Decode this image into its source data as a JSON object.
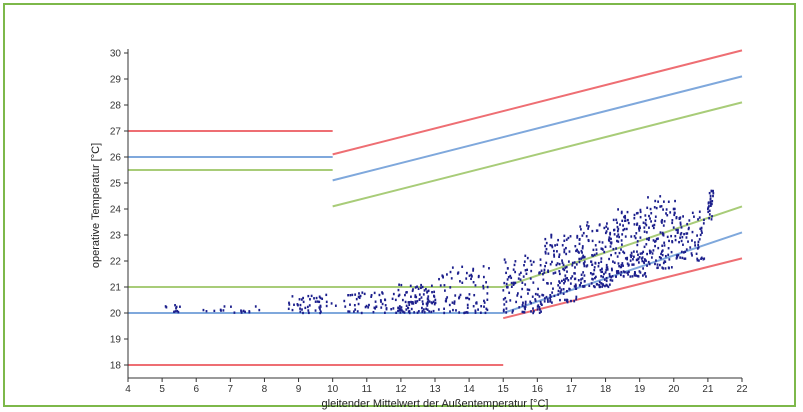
{
  "chart_data": {
    "type": "scatter",
    "xlabel": "gleitender Mittelwert der Außentemperatur [°C]",
    "ylabel": "operative Temperatur [°C]",
    "xlim": [
      4,
      22
    ],
    "ylim": [
      17.5,
      30
    ],
    "x_ticks": [
      4,
      5,
      6,
      7,
      8,
      9,
      10,
      11,
      12,
      13,
      14,
      15,
      16,
      17,
      18,
      19,
      20,
      21,
      22
    ],
    "y_ticks": [
      18,
      19,
      20,
      21,
      22,
      23,
      24,
      25,
      26,
      27,
      28,
      29,
      30
    ],
    "grid": false,
    "colors": {
      "red": "#ee6e73",
      "blue": "#7fa8dc",
      "green": "#a8cc78",
      "points": "#1c1f8c",
      "frame": "#7db84a"
    },
    "limit_lines": [
      {
        "color": "red",
        "points": [
          [
            4,
            27
          ],
          [
            10,
            27
          ]
        ]
      },
      {
        "color": "blue",
        "points": [
          [
            4,
            26
          ],
          [
            10,
            26
          ]
        ]
      },
      {
        "color": "green",
        "points": [
          [
            4,
            25.5
          ],
          [
            10,
            25.5
          ]
        ]
      },
      {
        "color": "red",
        "points": [
          [
            10,
            26.1
          ],
          [
            22,
            30.1
          ]
        ]
      },
      {
        "color": "blue",
        "points": [
          [
            10,
            25.1
          ],
          [
            22,
            29.1
          ]
        ]
      },
      {
        "color": "green",
        "points": [
          [
            10,
            24.1
          ],
          [
            22,
            28.1
          ]
        ]
      },
      {
        "color": "green",
        "points": [
          [
            4,
            21
          ],
          [
            15,
            21
          ]
        ]
      },
      {
        "color": "blue",
        "points": [
          [
            4,
            20
          ],
          [
            15,
            20
          ]
        ]
      },
      {
        "color": "red",
        "points": [
          [
            4,
            18
          ],
          [
            15,
            18
          ]
        ]
      },
      {
        "color": "green",
        "points": [
          [
            15,
            21
          ],
          [
            22,
            24.1
          ]
        ]
      },
      {
        "color": "blue",
        "points": [
          [
            15,
            20
          ],
          [
            22,
            23.1
          ]
        ]
      },
      {
        "color": "red",
        "points": [
          [
            15,
            19.8
          ],
          [
            22,
            22.1
          ]
        ]
      }
    ],
    "scatter_clusters": [
      {
        "x": [
          5.0,
          5.6
        ],
        "y": [
          20.0,
          20.3
        ],
        "n": 10
      },
      {
        "x": [
          6.0,
          7.9
        ],
        "y": [
          20.0,
          20.3
        ],
        "n": 18
      },
      {
        "x": [
          8.7,
          10.1
        ],
        "y": [
          20.0,
          20.7
        ],
        "n": 45
      },
      {
        "x": [
          10.3,
          11.9
        ],
        "y": [
          20.0,
          20.8
        ],
        "n": 55
      },
      {
        "x": [
          11.9,
          13.0
        ],
        "y": [
          20.0,
          21.1
        ],
        "n": 95
      },
      {
        "x": [
          13.0,
          14.6
        ],
        "y": [
          20.0,
          21.8
        ],
        "n": 85
      },
      {
        "x": [
          15.0,
          16.2
        ],
        "y": [
          20.0,
          22.3
        ],
        "n": 110
      },
      {
        "x": [
          16.2,
          17.2
        ],
        "y": [
          20.4,
          23.1
        ],
        "n": 130
      },
      {
        "x": [
          17.2,
          18.2
        ],
        "y": [
          21.0,
          23.5
        ],
        "n": 150
      },
      {
        "x": [
          18.2,
          19.2
        ],
        "y": [
          21.4,
          24.0
        ],
        "n": 150
      },
      {
        "x": [
          19.2,
          20.1
        ],
        "y": [
          21.7,
          24.5
        ],
        "n": 110
      },
      {
        "x": [
          20.1,
          20.9
        ],
        "y": [
          22.0,
          24.0
        ],
        "n": 70
      },
      {
        "x": [
          21.0,
          21.2
        ],
        "y": [
          23.6,
          24.7
        ],
        "n": 25
      }
    ]
  }
}
